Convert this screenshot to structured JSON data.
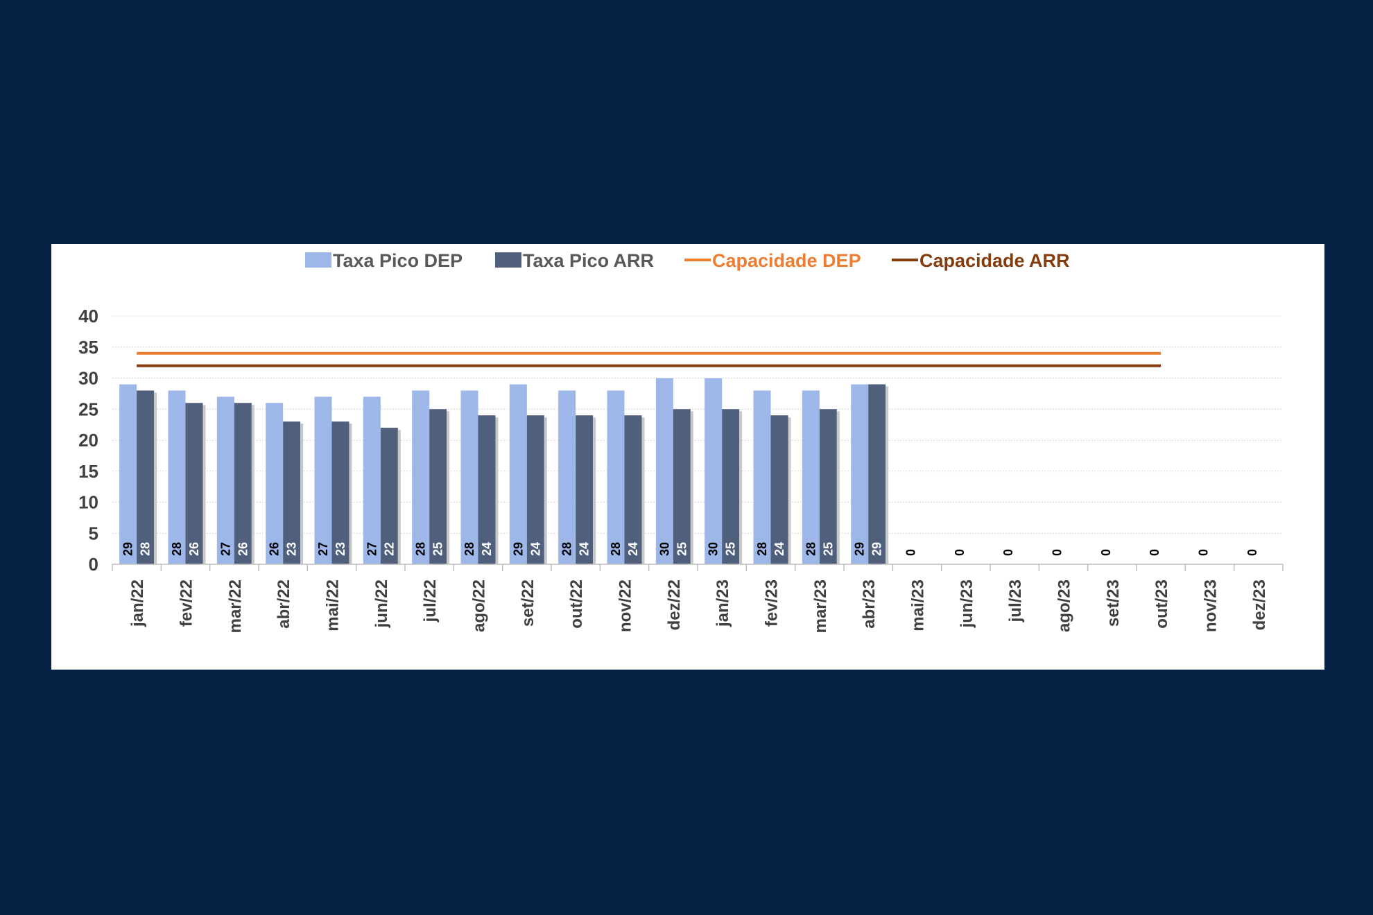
{
  "chart_data": {
    "type": "bar",
    "categories": [
      "jan/22",
      "fev/22",
      "mar/22",
      "abr/22",
      "mai/22",
      "jun/22",
      "jul/22",
      "ago/22",
      "set/22",
      "out/22",
      "nov/22",
      "dez/22",
      "jan/23",
      "fev/23",
      "mar/23",
      "abr/23",
      "mai/23",
      "jun/23",
      "jul/23",
      "ago/23",
      "set/23",
      "out/23",
      "nov/23",
      "dez/23"
    ],
    "series": [
      {
        "name": "Taxa Pico DEP",
        "kind": "bar",
        "color": "#9db7e8",
        "values": [
          29,
          28,
          27,
          26,
          27,
          27,
          28,
          28,
          29,
          28,
          28,
          30,
          30,
          28,
          28,
          29,
          0,
          0,
          0,
          0,
          0,
          0,
          0,
          0
        ]
      },
      {
        "name": "Taxa Pico ARR",
        "kind": "bar",
        "color": "#4f5f7c",
        "values": [
          28,
          26,
          26,
          23,
          23,
          22,
          25,
          24,
          24,
          24,
          24,
          25,
          25,
          24,
          25,
          29,
          0,
          0,
          0,
          0,
          0,
          0,
          0,
          0
        ]
      },
      {
        "name": "Capacidade DEP",
        "kind": "line",
        "color": "#ed7d31",
        "values": [
          34,
          34,
          34,
          34,
          34,
          34,
          34,
          34,
          34,
          34,
          34,
          34,
          34,
          34,
          34,
          34,
          34,
          34,
          34,
          34,
          34,
          34,
          null,
          null
        ]
      },
      {
        "name": "Capacidade ARR",
        "kind": "line",
        "color": "#843c0c",
        "values": [
          32,
          32,
          32,
          32,
          32,
          32,
          32,
          32,
          32,
          32,
          32,
          32,
          32,
          32,
          32,
          32,
          32,
          32,
          32,
          32,
          32,
          32,
          null,
          null
        ]
      }
    ],
    "yticks": [
      "0",
      "5",
      "10",
      "15",
      "20",
      "25",
      "30",
      "35",
      "40"
    ],
    "ylim": [
      0,
      40
    ],
    "grid": true,
    "legend_position": "top",
    "label_colors": {
      "dep": "#000000",
      "arr": "#ffffff",
      "zero": "#000000"
    }
  }
}
